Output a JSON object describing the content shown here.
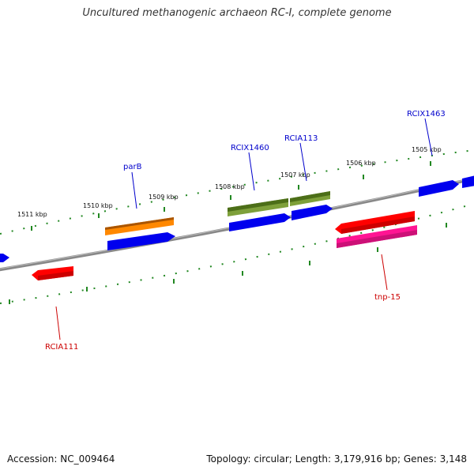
{
  "title": "Uncultured methanogenic archaeon RC-I, complete genome",
  "footer": {
    "accession": "Accession: NC_009464",
    "summary": "Topology: circular; Length: 3,179,916 bp; Genes: 3,148"
  },
  "ticks": [
    {
      "label": "1511 kbp"
    },
    {
      "label": "1510 kbp"
    },
    {
      "label": "1509 kbp"
    },
    {
      "label": "1508 kbp"
    },
    {
      "label": "1507 kbp"
    },
    {
      "label": "1506 kbp"
    },
    {
      "label": "1505 kbp"
    }
  ],
  "gene_labels": [
    {
      "text": "parB",
      "color": "#0000cc"
    },
    {
      "text": "RCIX1460",
      "color": "#0000cc"
    },
    {
      "text": "RCIA113",
      "color": "#0000cc"
    },
    {
      "text": "RCIX1463",
      "color": "#0000cc"
    },
    {
      "text": "tnp-15",
      "color": "#cc0000"
    },
    {
      "text": "RCIA111",
      "color": "#cc0000"
    }
  ],
  "colors": {
    "blue": "#0000ee",
    "orange": "#ff8800",
    "olive": "#5a8a1e",
    "red": "#ff0000",
    "pink": "#ff1493",
    "backbone": "#888888",
    "tick": "#228822"
  }
}
